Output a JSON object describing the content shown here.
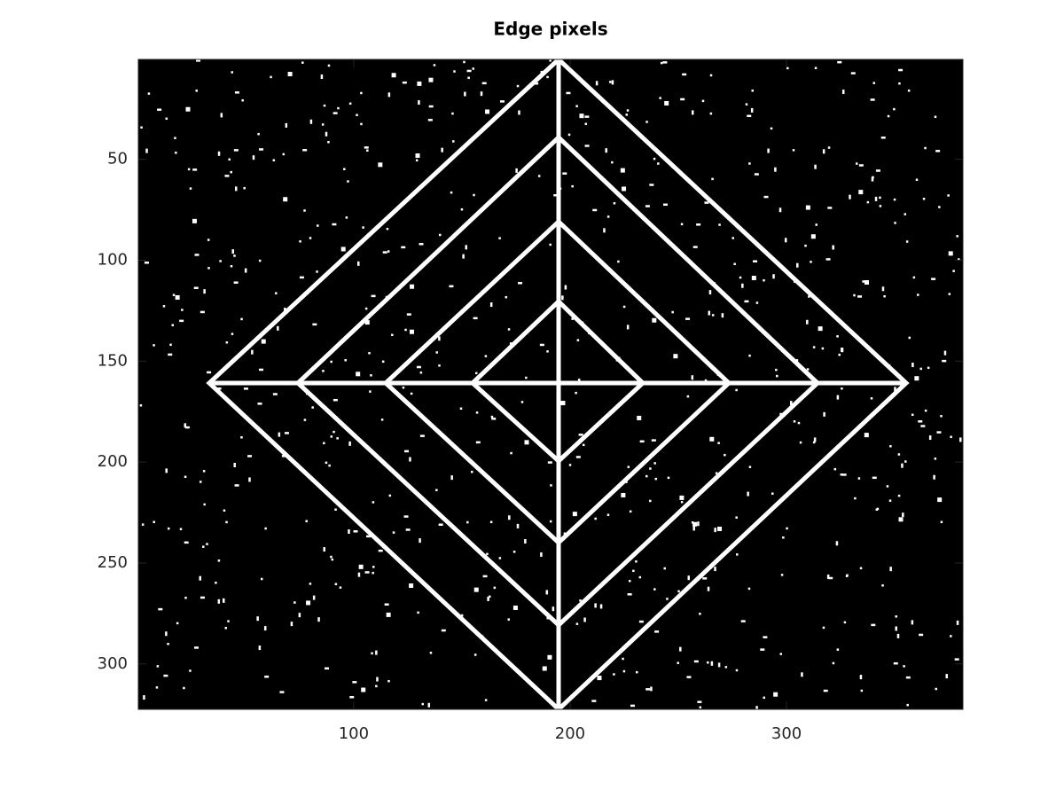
{
  "chart_data": {
    "type": "image",
    "title": "Edge pixels",
    "xlim": [
      0.5,
      381.5
    ],
    "xticks": [
      100,
      200,
      300
    ],
    "ylim": [
      0.5,
      322.5
    ],
    "yticks": [
      50,
      100,
      150,
      200,
      250,
      300
    ],
    "y_direction": "reverse",
    "colormap": [
      "#000000",
      "#ffffff"
    ]
  }
}
